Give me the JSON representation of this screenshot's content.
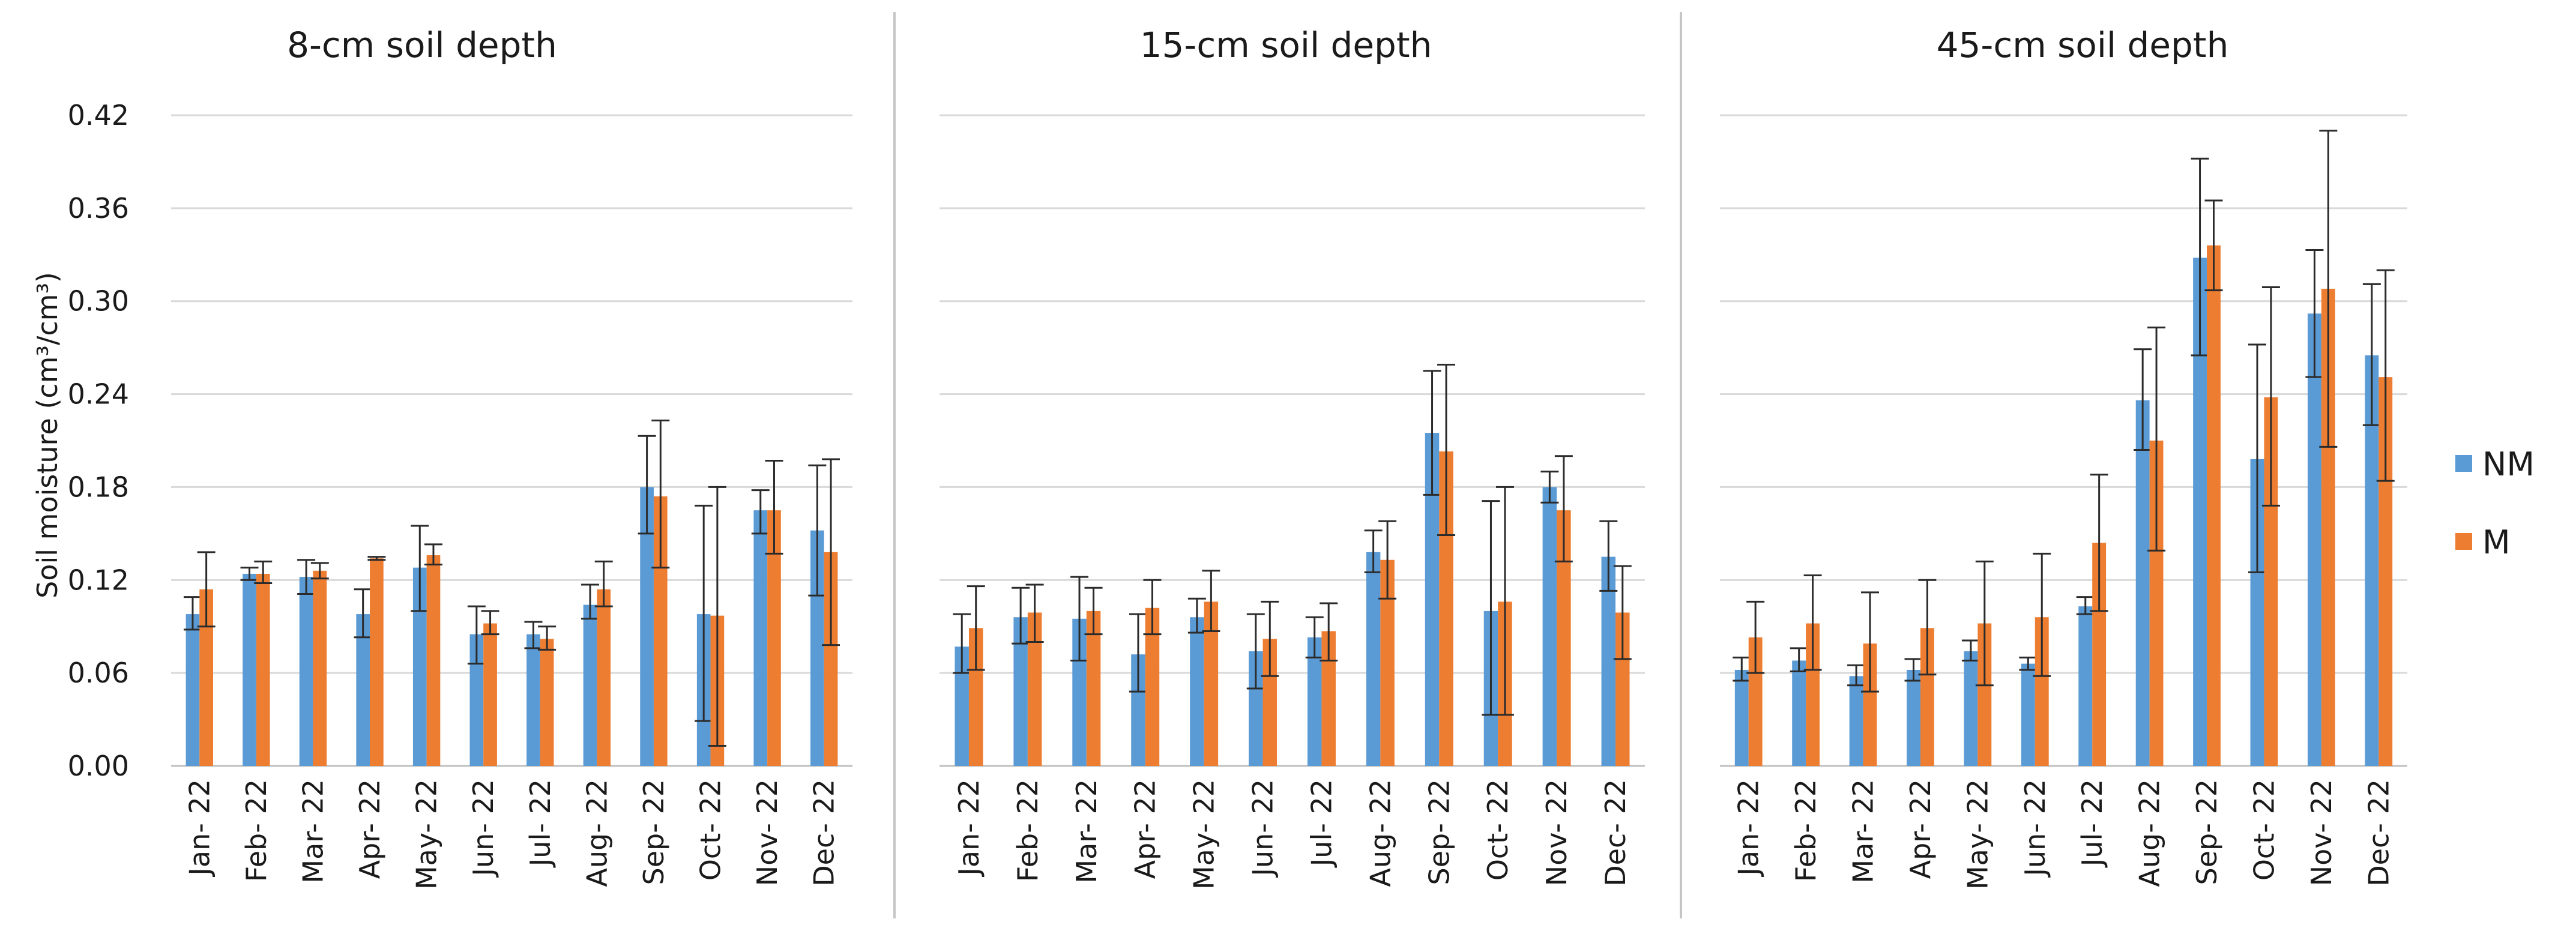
{
  "colors": {
    "NM": "#5b9bd5",
    "M": "#ed7d31"
  },
  "chart_data": {
    "type": "bar",
    "ylabel": "Soil moisture (cm³/cm³)",
    "ylim": [
      0,
      0.42
    ],
    "yticks": [
      "0.00",
      "0.06",
      "0.12",
      "0.18",
      "0.24",
      "0.30",
      "0.36",
      "0.42"
    ],
    "categories": [
      "Jan- 22",
      "Feb- 22",
      "Mar- 22",
      "Apr- 22",
      "May- 22",
      "Jun- 22",
      "Jul- 22",
      "Aug- 22",
      "Sep- 22",
      "Oct- 22",
      "Nov- 22",
      "Dec- 22"
    ],
    "legend": [
      "NM",
      "M"
    ],
    "legend_position": "right",
    "panels": [
      {
        "title": "8-cm soil depth",
        "series": [
          {
            "name": "NM",
            "values": [
              0.098,
              0.124,
              0.122,
              0.098,
              0.128,
              0.085,
              0.085,
              0.104,
              0.18,
              0.098,
              0.165,
              0.152
            ],
            "err_low": [
              0.088,
              0.12,
              0.111,
              0.083,
              0.1,
              0.066,
              0.076,
              0.095,
              0.15,
              0.029,
              0.15,
              0.11
            ],
            "err_high": [
              0.109,
              0.128,
              0.133,
              0.114,
              0.155,
              0.103,
              0.093,
              0.117,
              0.213,
              0.168,
              0.178,
              0.194
            ]
          },
          {
            "name": "M",
            "values": [
              0.114,
              0.124,
              0.126,
              0.134,
              0.136,
              0.092,
              0.082,
              0.114,
              0.174,
              0.097,
              0.165,
              0.138
            ],
            "err_low": [
              0.09,
              0.118,
              0.121,
              0.133,
              0.13,
              0.085,
              0.075,
              0.103,
              0.128,
              0.013,
              0.137,
              0.078
            ],
            "err_high": [
              0.138,
              0.132,
              0.131,
              0.135,
              0.143,
              0.1,
              0.09,
              0.132,
              0.223,
              0.18,
              0.197,
              0.198
            ]
          }
        ]
      },
      {
        "title": "15-cm soil depth",
        "series": [
          {
            "name": "NM",
            "values": [
              0.077,
              0.096,
              0.095,
              0.072,
              0.096,
              0.074,
              0.083,
              0.138,
              0.215,
              0.1,
              0.18,
              0.135
            ],
            "err_low": [
              0.06,
              0.079,
              0.068,
              0.048,
              0.086,
              0.05,
              0.07,
              0.125,
              0.175,
              0.033,
              0.17,
              0.113
            ],
            "err_high": [
              0.098,
              0.115,
              0.122,
              0.098,
              0.108,
              0.098,
              0.096,
              0.152,
              0.255,
              0.171,
              0.19,
              0.158
            ]
          },
          {
            "name": "M",
            "values": [
              0.089,
              0.099,
              0.1,
              0.102,
              0.106,
              0.082,
              0.087,
              0.133,
              0.203,
              0.106,
              0.165,
              0.099
            ],
            "err_low": [
              0.062,
              0.08,
              0.085,
              0.085,
              0.087,
              0.058,
              0.068,
              0.108,
              0.149,
              0.033,
              0.132,
              0.069
            ],
            "err_high": [
              0.116,
              0.117,
              0.115,
              0.12,
              0.126,
              0.106,
              0.105,
              0.158,
              0.259,
              0.18,
              0.2,
              0.129
            ]
          }
        ]
      },
      {
        "title": "45-cm soil depth",
        "series": [
          {
            "name": "NM",
            "values": [
              0.062,
              0.068,
              0.058,
              0.062,
              0.074,
              0.066,
              0.103,
              0.236,
              0.328,
              0.198,
              0.292,
              0.265
            ],
            "err_low": [
              0.055,
              0.061,
              0.052,
              0.055,
              0.068,
              0.062,
              0.098,
              0.204,
              0.265,
              0.125,
              0.251,
              0.22
            ],
            "err_high": [
              0.07,
              0.076,
              0.065,
              0.069,
              0.081,
              0.07,
              0.109,
              0.269,
              0.392,
              0.272,
              0.333,
              0.311
            ]
          },
          {
            "name": "M",
            "values": [
              0.083,
              0.092,
              0.079,
              0.089,
              0.092,
              0.096,
              0.144,
              0.21,
              0.336,
              0.238,
              0.308,
              0.251
            ],
            "err_low": [
              0.06,
              0.062,
              0.048,
              0.059,
              0.052,
              0.058,
              0.1,
              0.139,
              0.307,
              0.168,
              0.206,
              0.184
            ],
            "err_high": [
              0.106,
              0.123,
              0.112,
              0.12,
              0.132,
              0.137,
              0.188,
              0.283,
              0.365,
              0.309,
              0.41,
              0.32
            ]
          }
        ]
      }
    ]
  }
}
